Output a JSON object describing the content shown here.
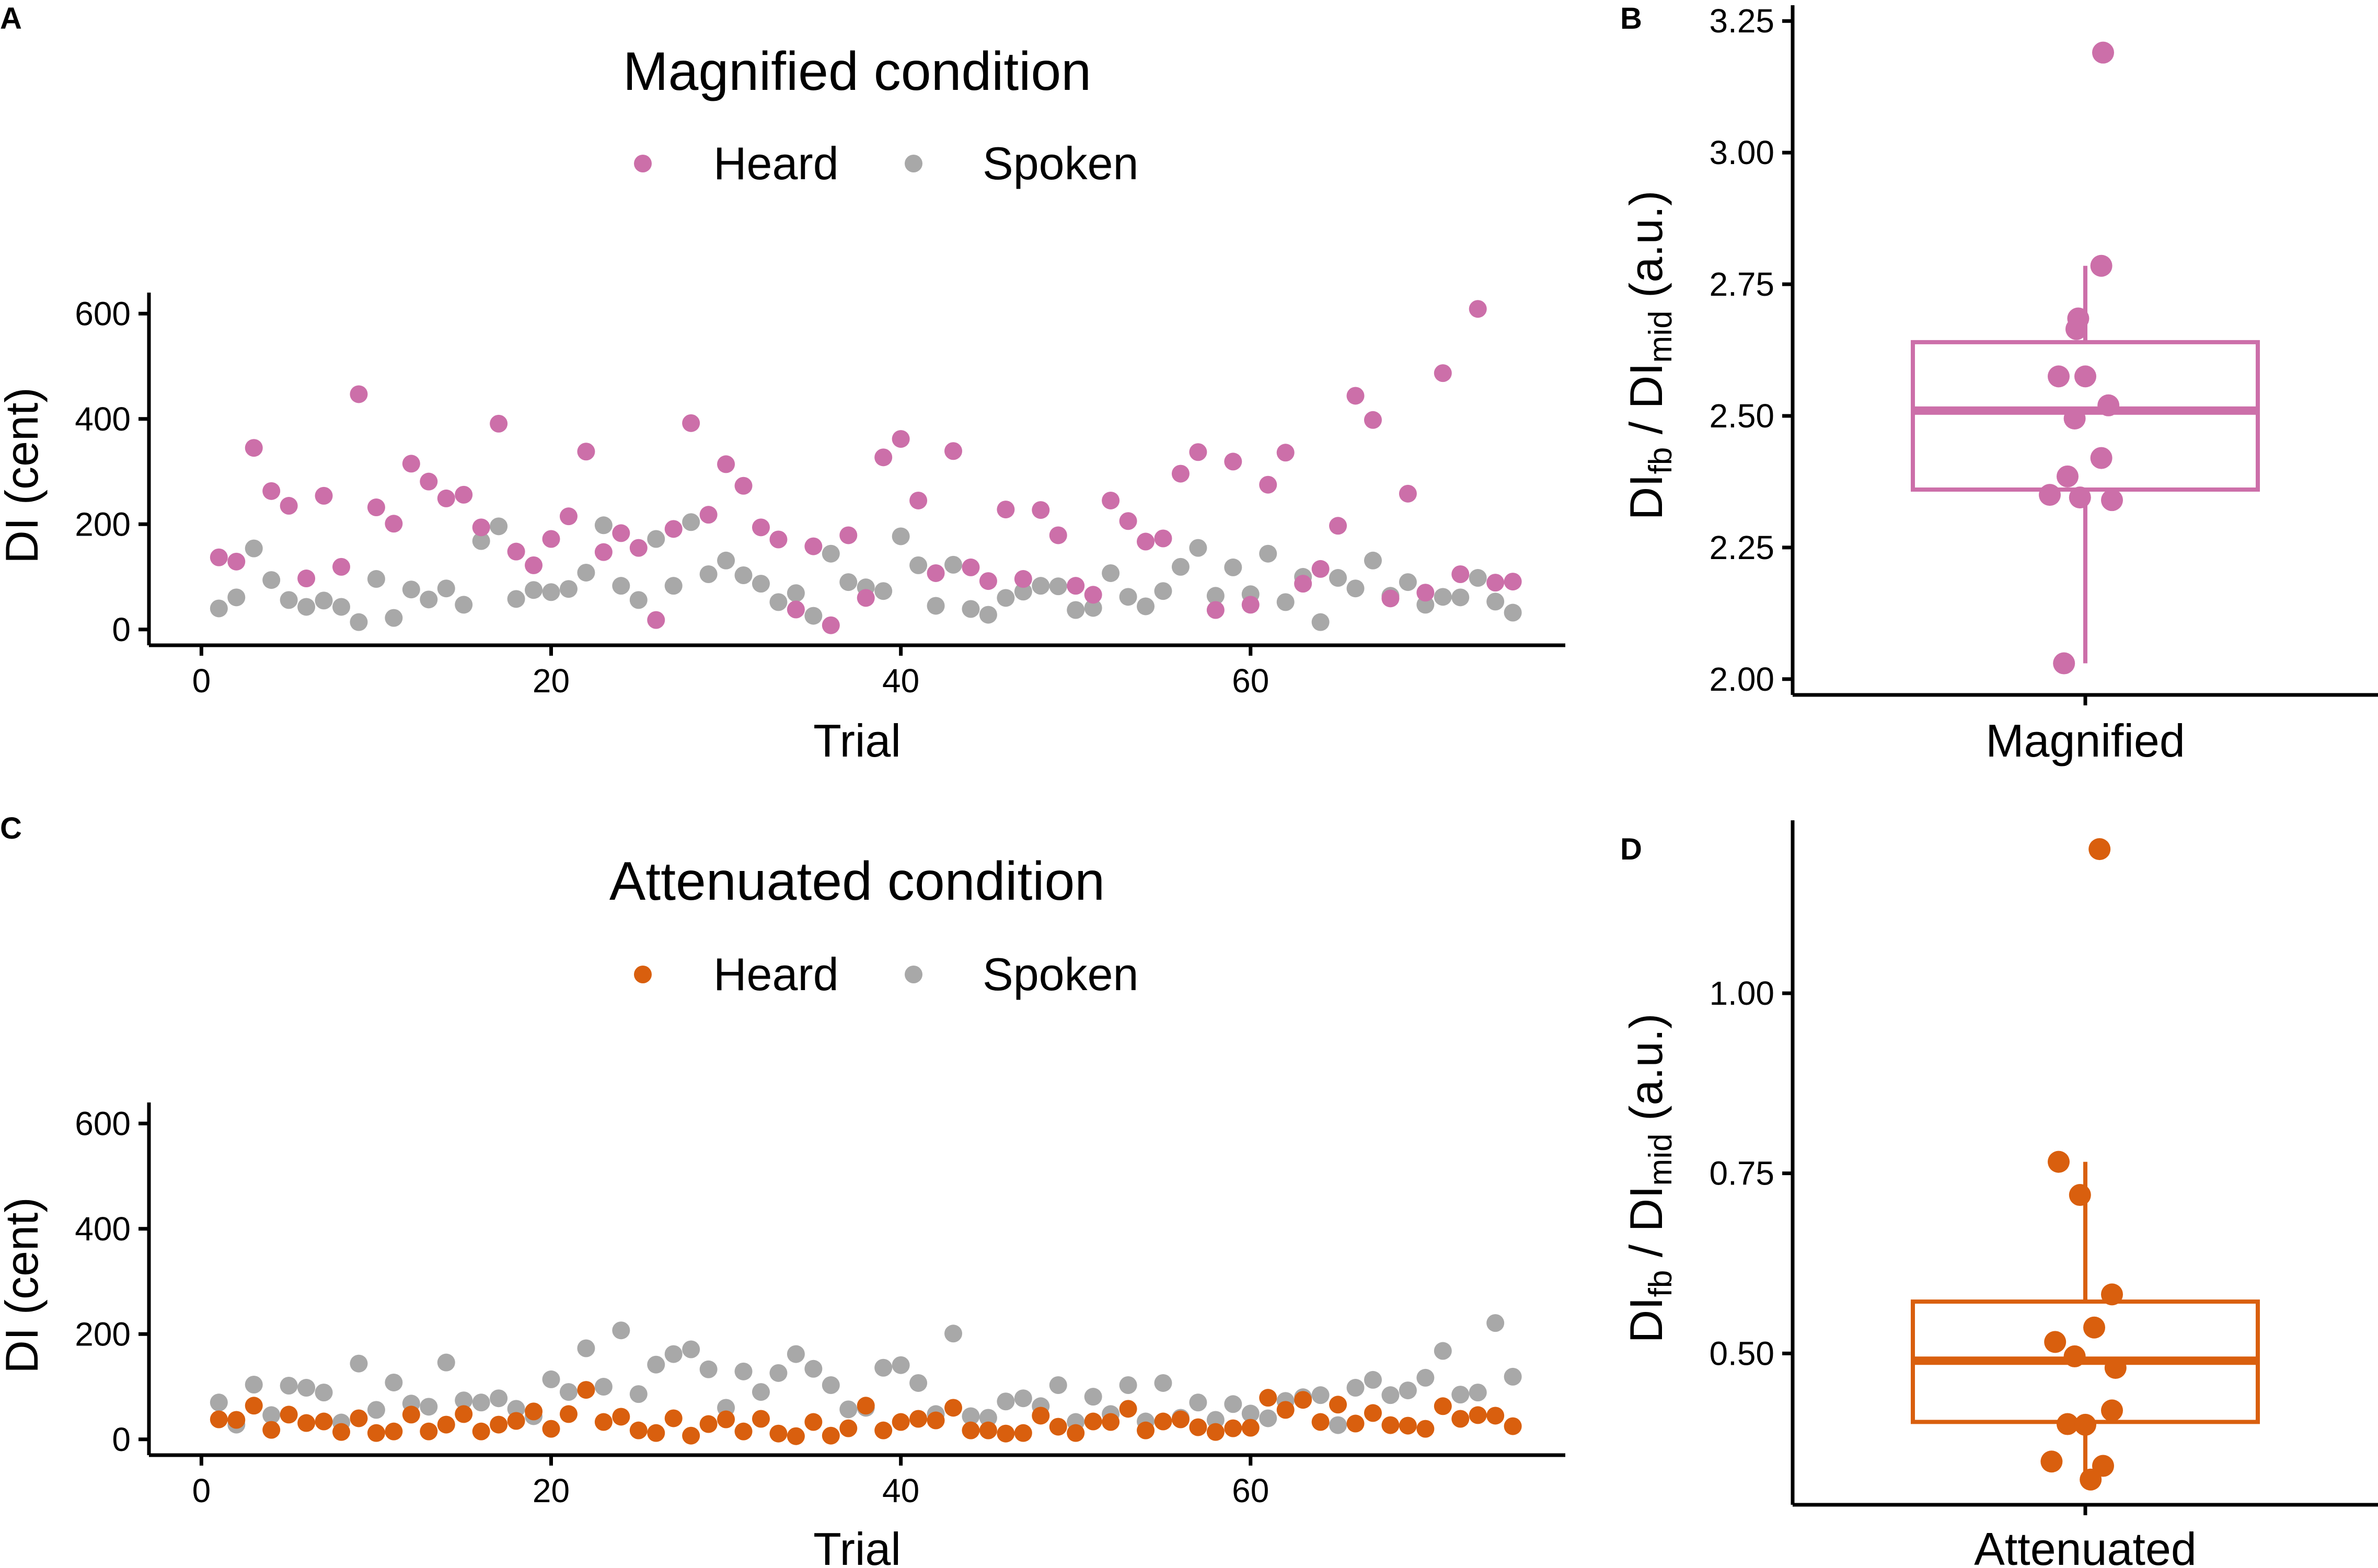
{
  "colors": {
    "magnified": "#CC6FA9",
    "attenuated": "#D95F0E",
    "spoken": "#A8A8A8",
    "axis": "#000000"
  },
  "panels": {
    "A": {
      "letter": "A"
    },
    "B": {
      "letter": "B"
    },
    "C": {
      "letter": "C"
    },
    "D": {
      "letter": "D"
    }
  },
  "chart_data": [
    {
      "id": "A",
      "type": "scatter",
      "title": "Magnified condition",
      "xlabel": "Trial",
      "ylabel": "DI (cent)",
      "xlim": [
        -3,
        78
      ],
      "ylim": [
        -30,
        640
      ],
      "xticks": [
        0,
        20,
        40,
        60
      ],
      "yticks": [
        0,
        200,
        400,
        600
      ],
      "xtick_labels": [
        "0",
        "20",
        "40",
        "60"
      ],
      "ytick_labels": [
        "0",
        "200",
        "400",
        "600"
      ],
      "legend": [
        "Heard",
        "Spoken"
      ],
      "legend_position": "top-center",
      "series": [
        {
          "name": "Heard",
          "color_key": "magnified",
          "x": [
            1,
            2,
            3,
            4,
            5,
            6,
            7,
            8,
            9,
            10,
            11,
            12,
            13,
            14,
            15,
            16,
            17,
            18,
            19,
            20,
            21,
            22,
            23,
            24,
            25,
            26,
            27,
            28,
            29,
            30,
            31,
            32,
            33,
            34,
            35,
            36,
            37,
            38,
            39,
            40,
            41,
            42,
            43,
            44,
            45,
            46,
            47,
            48,
            49,
            50,
            51,
            52,
            53,
            54,
            55,
            56,
            57,
            58,
            59,
            60,
            61,
            62,
            63,
            64,
            65,
            66,
            67,
            68,
            69,
            70,
            71,
            72,
            73,
            74,
            75
          ],
          "y": [
            137,
            129,
            345,
            263,
            235,
            97,
            254,
            119,
            447,
            232,
            201,
            315,
            281,
            249,
            256,
            194,
            391,
            148,
            122,
            172,
            215,
            338,
            147,
            183,
            155,
            18,
            191,
            392,
            218,
            314,
            273,
            194,
            171,
            38,
            158,
            8,
            179,
            60,
            327,
            362,
            245,
            107,
            339,
            118,
            92,
            228,
            96,
            227,
            179,
            83,
            66,
            245,
            206,
            167,
            173,
            296,
            337,
            37,
            319,
            47,
            275,
            336,
            87,
            115,
            197,
            444,
            398,
            59,
            258,
            70,
            487,
            105,
            609,
            89,
            91
          ]
        },
        {
          "name": "Spoken",
          "color_key": "spoken",
          "x": [
            1,
            2,
            3,
            4,
            5,
            6,
            7,
            8,
            9,
            10,
            11,
            12,
            13,
            14,
            15,
            16,
            17,
            18,
            19,
            20,
            21,
            22,
            23,
            24,
            25,
            26,
            27,
            28,
            29,
            30,
            31,
            32,
            33,
            34,
            35,
            36,
            37,
            38,
            39,
            40,
            41,
            42,
            43,
            44,
            45,
            46,
            47,
            48,
            49,
            50,
            51,
            52,
            53,
            54,
            55,
            56,
            57,
            58,
            59,
            60,
            61,
            62,
            63,
            64,
            65,
            66,
            67,
            68,
            69,
            70,
            71,
            72,
            73,
            74,
            75
          ],
          "y": [
            40,
            61,
            154,
            94,
            56,
            43,
            55,
            43,
            14,
            96,
            22,
            76,
            57,
            78,
            47,
            168,
            196,
            58,
            75,
            71,
            77,
            108,
            198,
            83,
            56,
            172,
            83,
            204,
            105,
            131,
            103,
            87,
            52,
            69,
            26,
            144,
            90,
            80,
            73,
            177,
            122,
            45,
            123,
            39,
            28,
            60,
            72,
            83,
            82,
            37,
            41,
            107,
            62,
            44,
            73,
            119,
            155,
            64,
            118,
            67,
            144,
            52,
            100,
            14,
            98,
            78,
            131,
            64,
            90,
            47,
            62,
            61,
            98,
            53,
            32
          ]
        }
      ]
    },
    {
      "id": "B",
      "type": "boxplot",
      "xlabel": "Magnified",
      "ylabel": "DIfb / DImid (a.u.)",
      "ylabel_main": "DI",
      "ylabel_sub1": "fb",
      "ylabel_mid": " / DI",
      "ylabel_sub2": "mid",
      "ylabel_tail": " (a.u.)",
      "ylim": [
        1.97,
        3.28
      ],
      "yticks": [
        2.0,
        2.25,
        2.5,
        2.75,
        3.0,
        3.25
      ],
      "ytick_labels": [
        "2.00",
        "2.25",
        "2.50",
        "2.75",
        "3.00",
        "3.25"
      ],
      "color_key": "magnified",
      "box": {
        "whisker_low": 2.03,
        "q1": 2.36,
        "median": 2.51,
        "q3": 2.64,
        "whisker_high": 2.785
      },
      "points": [
        3.19,
        2.785,
        2.685,
        2.665,
        2.575,
        2.575,
        2.52,
        2.495,
        2.42,
        2.385,
        2.35,
        2.345,
        2.34,
        2.03
      ],
      "jitter": [
        0.1,
        0.09,
        -0.04,
        -0.05,
        -0.15,
        0.0,
        0.13,
        -0.06,
        0.09,
        -0.1,
        -0.2,
        -0.03,
        0.15,
        -0.12
      ]
    },
    {
      "id": "C",
      "type": "scatter",
      "title": "Attenuated condition",
      "xlabel": "Trial",
      "ylabel": "DI (cent)",
      "xlim": [
        -3,
        78
      ],
      "ylim": [
        -30,
        640
      ],
      "xticks": [
        0,
        20,
        40,
        60
      ],
      "yticks": [
        0,
        200,
        400,
        600
      ],
      "xtick_labels": [
        "0",
        "20",
        "40",
        "60"
      ],
      "ytick_labels": [
        "0",
        "200",
        "400",
        "600"
      ],
      "legend": [
        "Heard",
        "Spoken"
      ],
      "legend_position": "top-center",
      "series": [
        {
          "name": "Heard",
          "color_key": "attenuated",
          "x": [
            1,
            2,
            3,
            4,
            5,
            6,
            7,
            8,
            9,
            10,
            11,
            12,
            13,
            14,
            15,
            16,
            17,
            18,
            19,
            20,
            21,
            22,
            23,
            24,
            25,
            26,
            27,
            28,
            29,
            30,
            31,
            32,
            33,
            34,
            35,
            36,
            37,
            38,
            39,
            40,
            41,
            42,
            43,
            44,
            45,
            46,
            47,
            48,
            49,
            50,
            51,
            52,
            53,
            54,
            55,
            56,
            57,
            58,
            59,
            60,
            61,
            62,
            63,
            64,
            65,
            66,
            67,
            68,
            69,
            70,
            71,
            72,
            73,
            74,
            75
          ],
          "y": [
            38,
            37,
            64,
            18,
            47,
            31,
            34,
            14,
            40,
            12,
            15,
            47,
            15,
            28,
            48,
            15,
            28,
            35,
            53,
            20,
            48,
            94,
            33,
            43,
            17,
            12,
            40,
            7,
            29,
            38,
            15,
            39,
            11,
            6,
            33,
            7,
            21,
            64,
            17,
            33,
            39,
            36,
            60,
            17,
            17,
            11,
            12,
            45,
            24,
            12,
            34,
            33,
            58,
            17,
            34,
            38,
            23,
            14,
            21,
            22,
            79,
            56,
            75,
            33,
            66,
            30,
            50,
            27,
            26,
            20,
            63,
            39,
            46,
            45,
            25
          ]
        },
        {
          "name": "Spoken",
          "color_key": "spoken",
          "x": [
            1,
            2,
            3,
            4,
            5,
            6,
            7,
            8,
            9,
            10,
            11,
            12,
            13,
            14,
            15,
            16,
            17,
            18,
            19,
            20,
            21,
            22,
            23,
            24,
            25,
            26,
            27,
            28,
            29,
            30,
            31,
            32,
            33,
            34,
            35,
            36,
            37,
            38,
            39,
            40,
            41,
            42,
            43,
            44,
            45,
            46,
            47,
            48,
            49,
            50,
            51,
            52,
            53,
            54,
            55,
            56,
            57,
            58,
            59,
            60,
            61,
            62,
            63,
            64,
            65,
            66,
            67,
            68,
            69,
            70,
            71,
            72,
            73,
            74,
            75
          ],
          "y": [
            70,
            28,
            104,
            46,
            102,
            98,
            89,
            32,
            144,
            56,
            108,
            68,
            62,
            146,
            74,
            70,
            78,
            58,
            44,
            114,
            90,
            173,
            100,
            207,
            86,
            142,
            162,
            171,
            133,
            60,
            129,
            90,
            126,
            162,
            134,
            103,
            57,
            60,
            136,
            141,
            107,
            48,
            201,
            44,
            41,
            72,
            78,
            63,
            103,
            33,
            81,
            48,
            103,
            34,
            107,
            41,
            70,
            37,
            67,
            49,
            40,
            73,
            80,
            84,
            27,
            98,
            113,
            84,
            93,
            117,
            168,
            85,
            89,
            221,
            119
          ]
        }
      ]
    },
    {
      "id": "D",
      "type": "boxplot",
      "xlabel": "Attenuated",
      "ylabel": "DIfb / DImid (a.u.)",
      "ylabel_main": "DI",
      "ylabel_sub1": "fb",
      "ylabel_mid": " / DI",
      "ylabel_sub2": "mid",
      "ylabel_tail": " (a.u.)",
      "ylim": [
        0.29,
        1.24
      ],
      "yticks": [
        0.5,
        0.75,
        1.0
      ],
      "ytick_labels": [
        "0.50",
        "0.75",
        "1.00"
      ],
      "color_key": "attenuated",
      "box": {
        "whisker_low": 0.325,
        "q1": 0.405,
        "median": 0.49,
        "q3": 0.572,
        "whisker_high": 0.766
      },
      "points": [
        1.2,
        0.766,
        0.72,
        0.582,
        0.536,
        0.516,
        0.496,
        0.48,
        0.421,
        0.402,
        0.401,
        0.35,
        0.344,
        0.325
      ],
      "jitter": [
        0.08,
        -0.15,
        -0.03,
        0.15,
        0.05,
        -0.17,
        -0.06,
        0.17,
        0.15,
        -0.1,
        0.0,
        -0.19,
        0.1,
        0.03
      ]
    }
  ]
}
